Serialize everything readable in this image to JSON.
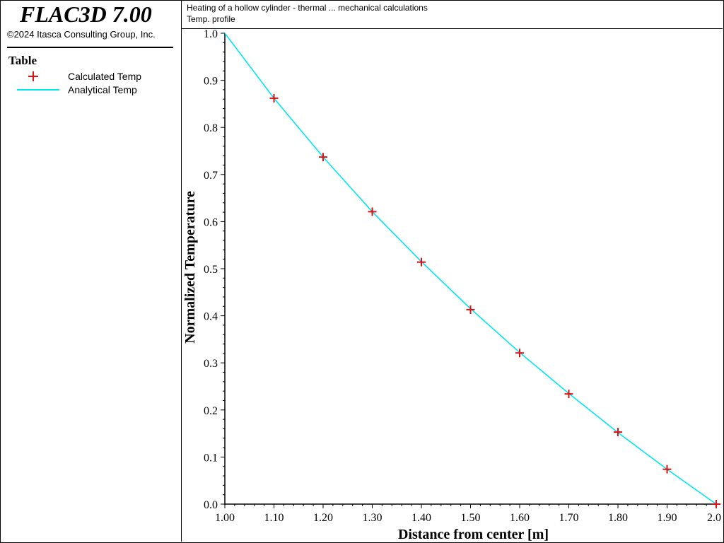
{
  "app": {
    "title": "FLAC3D 7.00",
    "copyright": "©2024 Itasca Consulting Group, Inc."
  },
  "legend": {
    "title": "Table",
    "items": [
      {
        "label": "Calculated Temp",
        "symbol": "plus-marker",
        "color": "#e01010"
      },
      {
        "label": "Analytical Temp",
        "symbol": "line",
        "color": "#00e5f5"
      }
    ]
  },
  "header": {
    "line1": "Heating of a hollow cylinder - thermal ... mechanical calculations",
    "line2": "Temp. profile"
  },
  "chart_data": {
    "type": "line",
    "xlabel": "Distance from center [m]",
    "ylabel": "Normalized Temperature",
    "xlim": [
      1.0,
      2.0
    ],
    "ylim": [
      0.0,
      1.0
    ],
    "xticks": [
      "1.00",
      "1.10",
      "1.20",
      "1.30",
      "1.40",
      "1.50",
      "1.60",
      "1.70",
      "1.80",
      "1.90",
      "2.0"
    ],
    "yticks": [
      "0.0",
      "0.1",
      "0.2",
      "0.3",
      "0.4",
      "0.5",
      "0.6",
      "0.7",
      "0.8",
      "0.9",
      "1.0"
    ],
    "grid": false,
    "series": [
      {
        "name": "Calculated Temp",
        "style": "markers",
        "marker": "plus",
        "color": "#e01010",
        "x": [
          1.1,
          1.2,
          1.3,
          1.4,
          1.5,
          1.6,
          1.7,
          1.8,
          1.9,
          2.0
        ],
        "y": [
          0.862,
          0.737,
          0.621,
          0.514,
          0.413,
          0.321,
          0.234,
          0.153,
          0.074,
          0.0
        ]
      },
      {
        "name": "Analytical Temp",
        "style": "line",
        "color": "#00e5f5",
        "x": [
          1.0,
          1.1,
          1.2,
          1.3,
          1.4,
          1.5,
          1.6,
          1.7,
          1.8,
          1.9,
          2.0
        ],
        "y": [
          1.0,
          0.862,
          0.737,
          0.621,
          0.515,
          0.415,
          0.322,
          0.235,
          0.152,
          0.074,
          0.0
        ]
      }
    ]
  }
}
